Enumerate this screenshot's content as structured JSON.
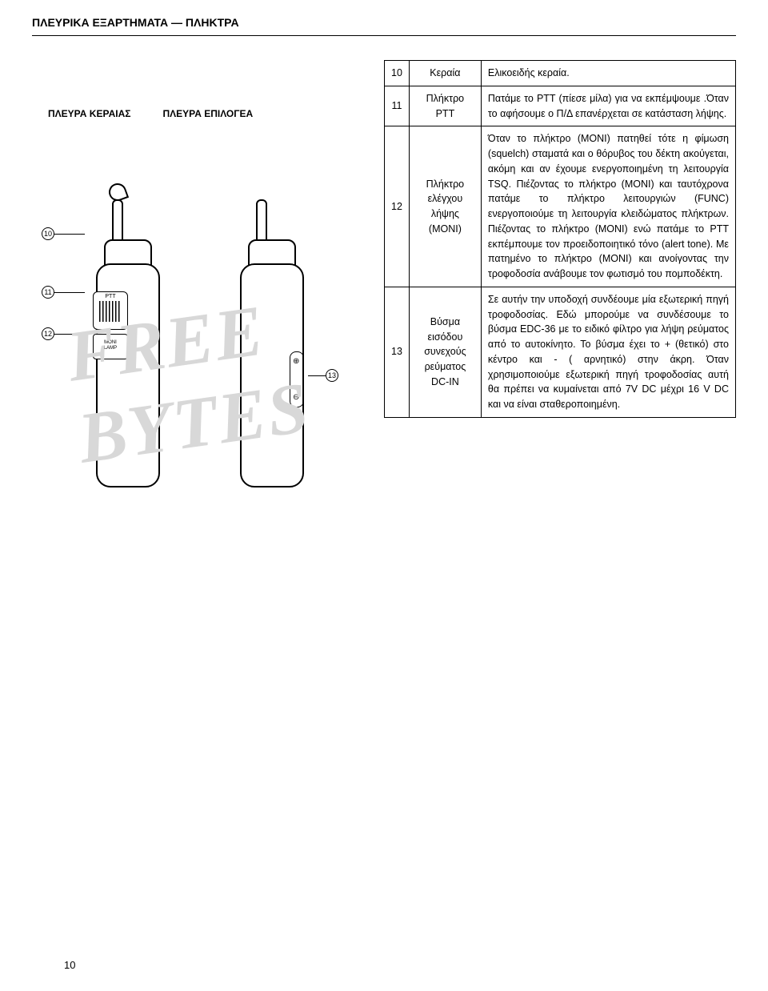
{
  "header_title": "ΠΛΕΥΡΙΚΑ ΕΞΑΡΤΗΜΑΤΑ — ΠΛΗΚΤΡΑ",
  "side_labels": {
    "antenna_side": "ΠΛΕΥΡΑ ΚΕΡΑΙΑΣ",
    "selector_side": "ΠΛΕΥΡΑ ΕΠΙΛΟΓΕΑ"
  },
  "diagram_labels": {
    "ptt": "PTT",
    "moni_line1": "MONI",
    "moni_line2": "LAMP"
  },
  "callouts": {
    "c10": "10",
    "c11": "11",
    "c12": "12",
    "c13": "13"
  },
  "watermark_text": "FREE BYTES",
  "table": {
    "rows": [
      {
        "num": "10",
        "name": "Κεραία",
        "desc": "Ελικοειδής κεραία."
      },
      {
        "num": "11",
        "name": "Πλήκτρο PTT",
        "desc": "Πατάμε το PTT (πίεσε μίλα) για να εκπέμψουμε .Όταν το αφήσουμε ο Π/Δ επανέρχεται σε κατάσταση λήψης."
      },
      {
        "num": "12",
        "name": "Πλήκτρο ελέγχου λήψης (MONI)",
        "desc": "Όταν το πλήκτρο (MONI) πατηθεί τότε η φίμωση (squelch) σταματά και ο θόρυβος του δέκτη ακούγεται, ακόμη και αν έχουμε ενεργοποιημένη τη λειτουργία TSQ. Πιέζοντας το πλήκτρο (MONI) και ταυτόχρονα πατάμε το πλήκτρο λειτουργιών (FUNC) ενεργοποιούμε τη λειτουργία κλειδώματος πλήκτρων. Πιέζοντας το πλήκτρο (MONI) ενώ πατάμε το PTT εκπέμπουμε τον προειδοποιητικό τόνο (alert tone). Με πατημένο το πλήκτρο (MONI) και ανοίγοντας την τροφοδοσία ανάβουμε τον φωτισμό του πομποδέκτη."
      },
      {
        "num": "13",
        "name": "Βύσμα εισόδου συνεχούς ρεύματος DC-IN",
        "desc": "Σε αυτήν την υποδοχή συνδέουμε μία εξωτερική πηγή τροφοδοσίας. Εδώ μπορούμε να συνδέσουμε το βύσμα EDC-36 με το ειδικό φίλτρο για λήψη ρεύματος από το αυτοκίνητο. Το βύσμα έχει το + (θετικό) στο κέντρο και - ( αρνητικό) στην άκρη. Όταν χρησιμοποιούμε εξωτερική πηγή τροφοδοσίας αυτή θα πρέπει να κυμαίνεται από 7V DC μέχρι 16 V DC και να είναι σταθεροποιημένη."
      }
    ]
  },
  "page_number": "10"
}
